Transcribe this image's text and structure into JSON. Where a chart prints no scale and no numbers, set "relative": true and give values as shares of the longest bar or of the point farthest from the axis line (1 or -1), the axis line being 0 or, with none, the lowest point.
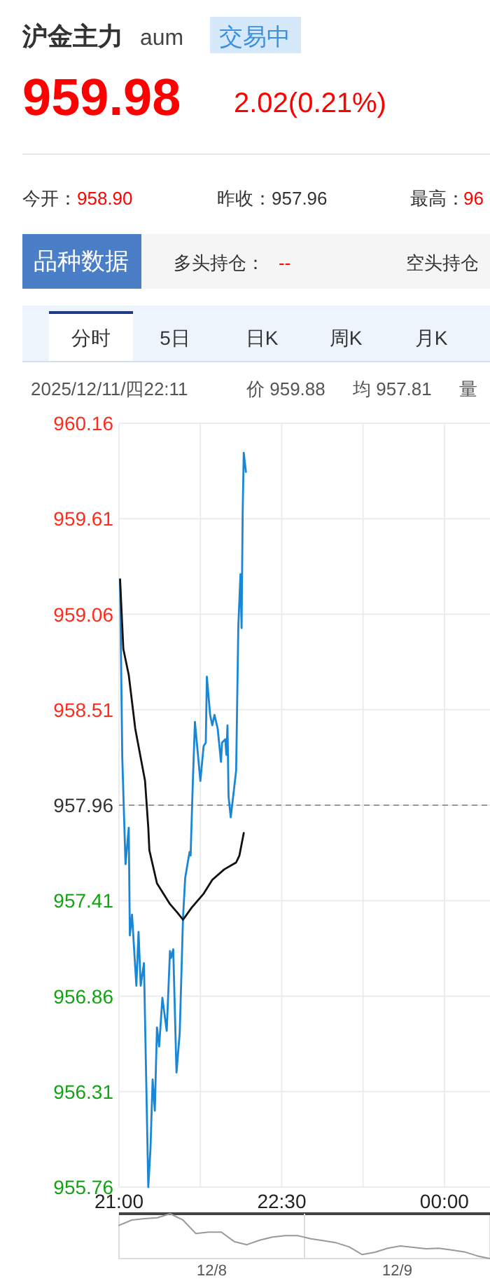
{
  "chart_data": [
    {
      "type": "other",
      "title": "沪金主力",
      "subtitle": "aum",
      "annotations": [
        "交易中",
        "959.98",
        "2.02(0.21%)",
        "今开：",
        "958.90",
        "昨收：",
        "957.96",
        "最高：",
        "96",
        "品种数据",
        "多头持仓：",
        "--",
        "空头持仓",
        "分时",
        "5日",
        "日K",
        "周K",
        "月K",
        "2025/12/11/四22:11",
        "价 959.88",
        "均 957.81",
        "量"
      ]
    },
    {
      "type": "line",
      "xlim": [
        21,
        24.42
      ],
      "ylim": [
        955.76,
        960.16
      ],
      "xticks": [
        {
          "value": 21,
          "label": "21:00"
        },
        {
          "value": 21.75,
          "label": null
        },
        {
          "value": 22.5,
          "label": "22:30"
        },
        {
          "value": 23.25,
          "label": null
        },
        {
          "value": 24,
          "label": "00:00"
        }
      ],
      "yticks": [
        955.76,
        956.31,
        956.86,
        957.41,
        957.96,
        958.51,
        959.06,
        959.61,
        960.16
      ],
      "grid": true,
      "ref_lines": [
        {
          "axis": "y",
          "value": 957.96,
          "color": "#999999",
          "line_style": "dashed"
        }
      ],
      "series": [
        {
          "color": "#1a87d6",
          "x": [
            21.01,
            21.03,
            21.06,
            21.09,
            21.1,
            21.12,
            21.16,
            21.18,
            21.2,
            21.23,
            21.27,
            21.29,
            21.31,
            21.33,
            21.35,
            21.37,
            21.4,
            21.44,
            21.47,
            21.48,
            21.5,
            21.53,
            21.56,
            21.59,
            21.61,
            21.65,
            21.66,
            21.68,
            21.7,
            21.75,
            21.78,
            21.8,
            21.81,
            21.84,
            21.86,
            21.88,
            21.91,
            21.94,
            21.95,
            21.98,
            21.99,
            22.0,
            22.01,
            22.03,
            22.06,
            22.08,
            22.1,
            22.12,
            22.13,
            22.14,
            22.15,
            22.17
          ],
          "values": [
            959.26,
            958.24,
            957.62,
            957.83,
            957.21,
            957.33,
            956.92,
            957.23,
            956.92,
            957.05,
            955.76,
            955.98,
            956.38,
            956.2,
            956.68,
            956.57,
            956.85,
            956.66,
            957.12,
            957.08,
            957.13,
            956.42,
            956.65,
            957.31,
            957.54,
            957.69,
            957.67,
            958.08,
            958.44,
            958.1,
            958.3,
            958.32,
            958.7,
            958.48,
            958.42,
            958.48,
            958.4,
            958.21,
            958.32,
            958.34,
            958.25,
            958.42,
            958.01,
            957.89,
            958.05,
            958.16,
            958.99,
            959.29,
            958.98,
            959.64,
            959.99,
            959.88
          ]
        },
        {
          "color": "#111111",
          "x": [
            21.01,
            21.04,
            21.09,
            21.15,
            21.24,
            21.27,
            21.28,
            21.35,
            21.47,
            21.54,
            21.59,
            21.67,
            21.78,
            21.86,
            21.97,
            22.08,
            22.11,
            22.15
          ],
          "values": [
            959.26,
            958.86,
            958.71,
            958.4,
            958.1,
            957.83,
            957.7,
            957.51,
            957.39,
            957.34,
            957.3,
            957.37,
            957.45,
            957.53,
            957.59,
            957.63,
            957.67,
            957.8
          ]
        }
      ]
    },
    {
      "type": "line",
      "relative": true,
      "categories": [
        null,
        null,
        null,
        null,
        null,
        null,
        null,
        null,
        null,
        null,
        null,
        null,
        null,
        null,
        null,
        null,
        null,
        null,
        null,
        null,
        null,
        null,
        null,
        null,
        null,
        null,
        null,
        null,
        null,
        null
      ],
      "series": [
        {
          "color": "#999999",
          "values": [
            0.74,
            0.86,
            0.89,
            0.91,
            1,
            0.86,
            0.56,
            0.59,
            0.59,
            0.38,
            0.31,
            0.41,
            0.48,
            0.51,
            0.51,
            0.44,
            0.4,
            0.35,
            0.26,
            0.09,
            0.14,
            0.23,
            0.28,
            0.25,
            0.22,
            0.23,
            0.19,
            0.15,
            0.06,
            0
          ]
        }
      ],
      "annotations": [
        "12/8",
        "12/9"
      ]
    }
  ]
}
